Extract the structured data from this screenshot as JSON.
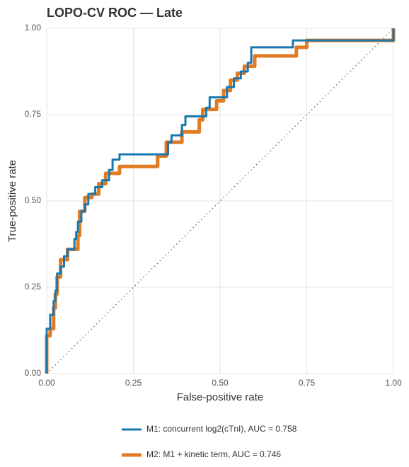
{
  "chart_data": {
    "type": "line",
    "title": "LOPO-CV ROC — Late",
    "x_label": "False-positive rate",
    "y_label": "True-positive rate",
    "xlim": [
      0,
      1
    ],
    "ylim": [
      0,
      1
    ],
    "xticks": [
      {
        "value": 0,
        "label": "0.00"
      },
      {
        "value": 0.25,
        "label": "0.25"
      },
      {
        "value": 0.5,
        "label": "0.50"
      },
      {
        "value": 0.75,
        "label": "0.75"
      },
      {
        "value": 1,
        "label": "1.00"
      }
    ],
    "yticks": [
      {
        "value": 0,
        "label": "0.00"
      },
      {
        "value": 0.25,
        "label": "0.25"
      },
      {
        "value": 0.5,
        "label": "0.50"
      },
      {
        "value": 0.75,
        "label": "0.75"
      },
      {
        "value": 1,
        "label": "1.00"
      }
    ],
    "grid": true,
    "series": [
      {
        "name": "M1: concurrent log2(cTnI), AUC = 0.758",
        "color": "#1a78b0",
        "width": 3,
        "x": [
          0,
          0,
          0.01,
          0.01,
          0.02,
          0.02,
          0.025,
          0.025,
          0.03,
          0.03,
          0.04,
          0.04,
          0.05,
          0.05,
          0.06,
          0.06,
          0.08,
          0.08,
          0.085,
          0.085,
          0.09,
          0.09,
          0.1,
          0.1,
          0.11,
          0.11,
          0.12,
          0.12,
          0.14,
          0.14,
          0.16,
          0.16,
          0.18,
          0.18,
          0.19,
          0.19,
          0.21,
          0.21,
          0.35,
          0.35,
          0.36,
          0.36,
          0.39,
          0.39,
          0.4,
          0.4,
          0.46,
          0.46,
          0.47,
          0.47,
          0.52,
          0.52,
          0.54,
          0.54,
          0.56,
          0.56,
          0.58,
          0.58,
          0.59,
          0.59,
          0.71,
          0.71,
          1,
          1
        ],
        "values": [
          0,
          0.13,
          0.13,
          0.17,
          0.17,
          0.21,
          0.21,
          0.24,
          0.24,
          0.29,
          0.29,
          0.31,
          0.31,
          0.34,
          0.34,
          0.36,
          0.36,
          0.39,
          0.39,
          0.41,
          0.41,
          0.44,
          0.44,
          0.47,
          0.47,
          0.49,
          0.49,
          0.52,
          0.52,
          0.54,
          0.54,
          0.56,
          0.56,
          0.59,
          0.59,
          0.62,
          0.62,
          0.635,
          0.635,
          0.67,
          0.67,
          0.69,
          0.69,
          0.72,
          0.72,
          0.745,
          0.745,
          0.77,
          0.77,
          0.8,
          0.8,
          0.83,
          0.83,
          0.855,
          0.855,
          0.875,
          0.875,
          0.9,
          0.9,
          0.945,
          0.945,
          0.965,
          0.965,
          1
        ]
      },
      {
        "name": "M2: M1 + kinetic term, AUC = 0.746",
        "color": "#e07b24",
        "width": 5,
        "x": [
          0,
          0,
          0.01,
          0.01,
          0.02,
          0.02,
          0.025,
          0.025,
          0.03,
          0.03,
          0.04,
          0.04,
          0.06,
          0.06,
          0.09,
          0.09,
          0.095,
          0.095,
          0.11,
          0.11,
          0.13,
          0.13,
          0.15,
          0.15,
          0.17,
          0.17,
          0.21,
          0.21,
          0.32,
          0.32,
          0.345,
          0.345,
          0.39,
          0.39,
          0.44,
          0.44,
          0.45,
          0.45,
          0.49,
          0.49,
          0.51,
          0.51,
          0.53,
          0.53,
          0.55,
          0.55,
          0.57,
          0.57,
          0.6,
          0.6,
          0.72,
          0.72,
          0.75,
          0.75,
          1,
          1
        ],
        "values": [
          0,
          0.11,
          0.11,
          0.13,
          0.13,
          0.19,
          0.19,
          0.23,
          0.23,
          0.28,
          0.28,
          0.33,
          0.33,
          0.36,
          0.36,
          0.4,
          0.4,
          0.47,
          0.47,
          0.51,
          0.51,
          0.52,
          0.52,
          0.55,
          0.55,
          0.58,
          0.58,
          0.6,
          0.6,
          0.63,
          0.63,
          0.67,
          0.67,
          0.7,
          0.7,
          0.735,
          0.735,
          0.765,
          0.765,
          0.79,
          0.79,
          0.82,
          0.82,
          0.85,
          0.85,
          0.87,
          0.87,
          0.89,
          0.89,
          0.92,
          0.92,
          0.945,
          0.945,
          0.965,
          0.965,
          1
        ]
      }
    ]
  }
}
